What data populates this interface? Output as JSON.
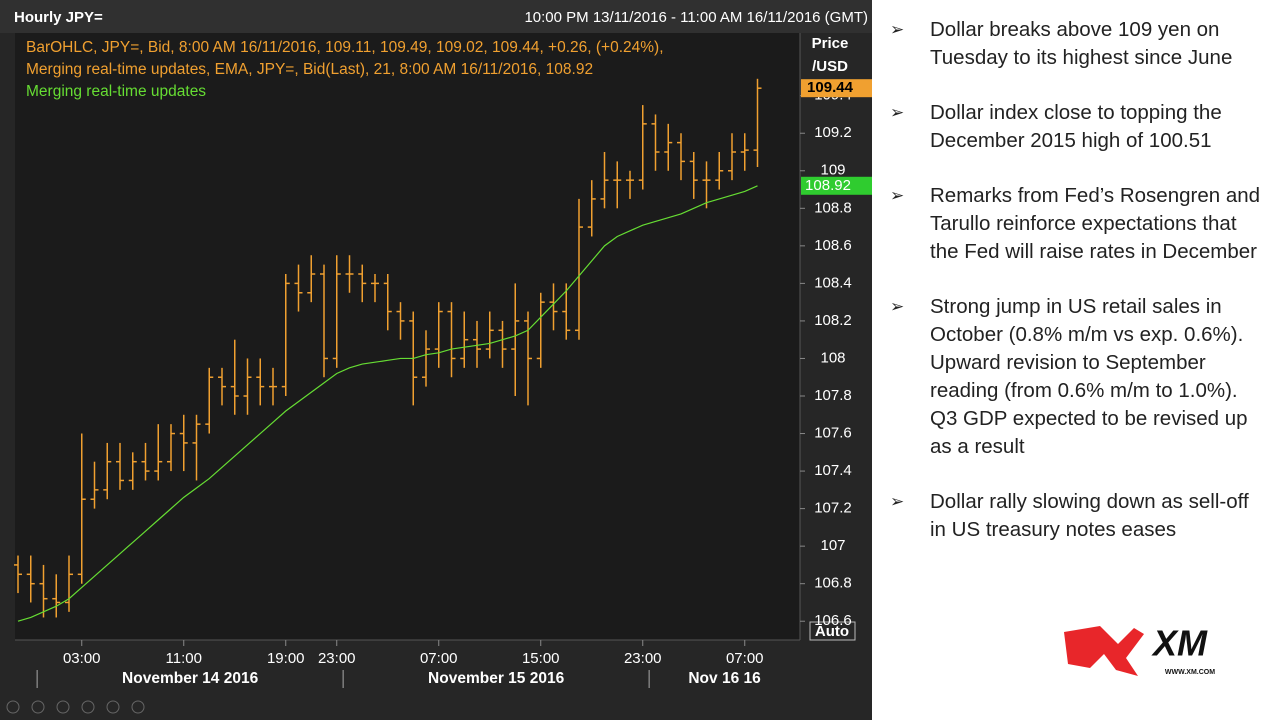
{
  "window": {
    "title": "Hourly JPY=",
    "range": "10:00 PM 13/11/2016 - 11:00 AM 16/11/2016 (GMT)",
    "auto": "Auto"
  },
  "chart_data": {
    "type": "ohlc",
    "legend": [
      "BarOHLC, JPY=, Bid, 8:00 AM 16/11/2016, 109.11, 109.49, 109.02, 109.44, +0.26, (+0.24%),",
      "Merging real-time updates, EMA, JPY=, Bid(Last),  21, 8:00 AM 16/11/2016, 108.92",
      "Merging real-time updates"
    ],
    "y_label": [
      "Price",
      "/USD"
    ],
    "categories": [
      null,
      null,
      null,
      null,
      null,
      "03:00",
      null,
      null,
      null,
      null,
      null,
      null,
      null,
      "11:00",
      null,
      null,
      null,
      null,
      null,
      null,
      null,
      "19:00",
      null,
      null,
      null,
      "23:00",
      null,
      null,
      null,
      null,
      null,
      null,
      null,
      "07:00",
      null,
      null,
      null,
      null,
      null,
      null,
      null,
      "15:00",
      null,
      null,
      null,
      null,
      null,
      null,
      null,
      "23:00",
      null,
      null,
      null,
      null,
      null,
      null,
      null,
      "07:00",
      null
    ],
    "dates": [
      "November 14 2016",
      "November 15 2016",
      "Nov 16 16"
    ],
    "series": [
      {
        "color": "#f0a030",
        "open": [
          106.9,
          106.85,
          106.8,
          106.72,
          106.7,
          106.85,
          107.25,
          107.3,
          107.45,
          107.35,
          107.45,
          107.4,
          107.45,
          107.6,
          107.55,
          107.65,
          107.9,
          107.85,
          107.8,
          107.9,
          107.85,
          107.85,
          108.4,
          108.35,
          108.45,
          108.0,
          108.45,
          108.45,
          108.4,
          108.4,
          108.25,
          108.2,
          107.9,
          108.05,
          108.25,
          108.0,
          108.1,
          108.05,
          108.15,
          108.05,
          108.2,
          108.0,
          108.3,
          108.25,
          108.15,
          108.7,
          108.85,
          108.95,
          108.95,
          108.95,
          109.25,
          109.1,
          109.15,
          109.05,
          108.95,
          108.95,
          109.0,
          109.1,
          109.11
        ],
        "high": [
          106.95,
          106.95,
          106.9,
          106.85,
          106.95,
          107.6,
          107.45,
          107.55,
          107.55,
          107.5,
          107.55,
          107.65,
          107.65,
          107.7,
          107.7,
          107.95,
          107.95,
          108.1,
          108.0,
          108.0,
          107.95,
          108.45,
          108.5,
          108.55,
          108.5,
          108.55,
          108.55,
          108.5,
          108.45,
          108.45,
          108.3,
          108.25,
          108.15,
          108.3,
          108.3,
          108.25,
          108.2,
          108.25,
          108.2,
          108.4,
          108.25,
          108.35,
          108.4,
          108.4,
          108.85,
          108.95,
          109.1,
          109.05,
          109.0,
          109.35,
          109.3,
          109.25,
          109.2,
          109.1,
          109.05,
          109.1,
          109.2,
          109.2,
          109.49
        ],
        "low": [
          106.75,
          106.7,
          106.62,
          106.62,
          106.65,
          106.8,
          107.2,
          107.25,
          107.3,
          107.3,
          107.35,
          107.35,
          107.4,
          107.4,
          107.35,
          107.6,
          107.75,
          107.7,
          107.7,
          107.75,
          107.75,
          107.8,
          108.25,
          108.3,
          107.9,
          107.95,
          108.35,
          108.3,
          108.3,
          108.15,
          108.1,
          107.75,
          107.85,
          107.95,
          107.9,
          107.95,
          107.95,
          108.0,
          107.95,
          107.8,
          107.75,
          107.95,
          108.15,
          108.1,
          108.1,
          108.65,
          108.8,
          108.8,
          108.85,
          108.9,
          109.0,
          109.0,
          108.95,
          108.85,
          108.8,
          108.9,
          108.95,
          109.0,
          109.02
        ],
        "close": [
          106.85,
          106.8,
          106.72,
          106.7,
          106.85,
          107.25,
          107.3,
          107.45,
          107.35,
          107.45,
          107.4,
          107.45,
          107.6,
          107.55,
          107.65,
          107.9,
          107.85,
          107.8,
          107.9,
          107.85,
          107.85,
          108.4,
          108.35,
          108.45,
          108.0,
          108.45,
          108.45,
          108.4,
          108.4,
          108.25,
          108.2,
          107.9,
          108.05,
          108.25,
          108.0,
          108.1,
          108.05,
          108.15,
          108.05,
          108.2,
          108.0,
          108.3,
          108.25,
          108.15,
          108.7,
          108.85,
          108.95,
          108.95,
          108.95,
          109.25,
          109.1,
          109.15,
          109.05,
          108.95,
          108.95,
          109.0,
          109.1,
          109.11,
          109.44
        ]
      },
      {
        "color": "#66dd33",
        "values": [
          106.6,
          106.62,
          106.65,
          106.68,
          106.72,
          106.78,
          106.84,
          106.9,
          106.96,
          107.02,
          107.08,
          107.14,
          107.2,
          107.26,
          107.31,
          107.36,
          107.42,
          107.48,
          107.54,
          107.6,
          107.66,
          107.72,
          107.77,
          107.82,
          107.87,
          107.92,
          107.95,
          107.97,
          107.98,
          107.99,
          108.0,
          108.0,
          108.02,
          108.03,
          108.05,
          108.06,
          108.07,
          108.08,
          108.1,
          108.12,
          108.15,
          108.22,
          108.29,
          108.36,
          108.44,
          108.52,
          108.6,
          108.65,
          108.68,
          108.71,
          108.73,
          108.75,
          108.77,
          108.8,
          108.83,
          108.85,
          108.87,
          108.89,
          108.92
        ]
      }
    ],
    "ylim": [
      106.5,
      109.75
    ],
    "yticks": [
      106.6,
      106.8,
      107,
      107.2,
      107.4,
      107.6,
      107.8,
      108,
      108.2,
      108.4,
      108.6,
      108.8,
      109,
      109.2,
      109.4
    ]
  },
  "bullets": [
    "Dollar breaks above 109 yen on Tuesday to its highest since June",
    "Dollar index close to topping the December 2015 high of 100.51",
    "Remarks from Fed’s Rosengren and Tarullo reinforce expectations that the Fed will raise rates in December",
    "Strong jump in US retail sales in October (0.8% m/m vs exp. 0.6%). Upward revision to September reading (from 0.6% m/m to 1.0%). Q3 GDP expected to be revised up as a result",
    "Dollar rally slowing down as sell-off in US treasury notes eases"
  ],
  "logo": {
    "name": "XM",
    "url": "WWW.XM.COM"
  }
}
